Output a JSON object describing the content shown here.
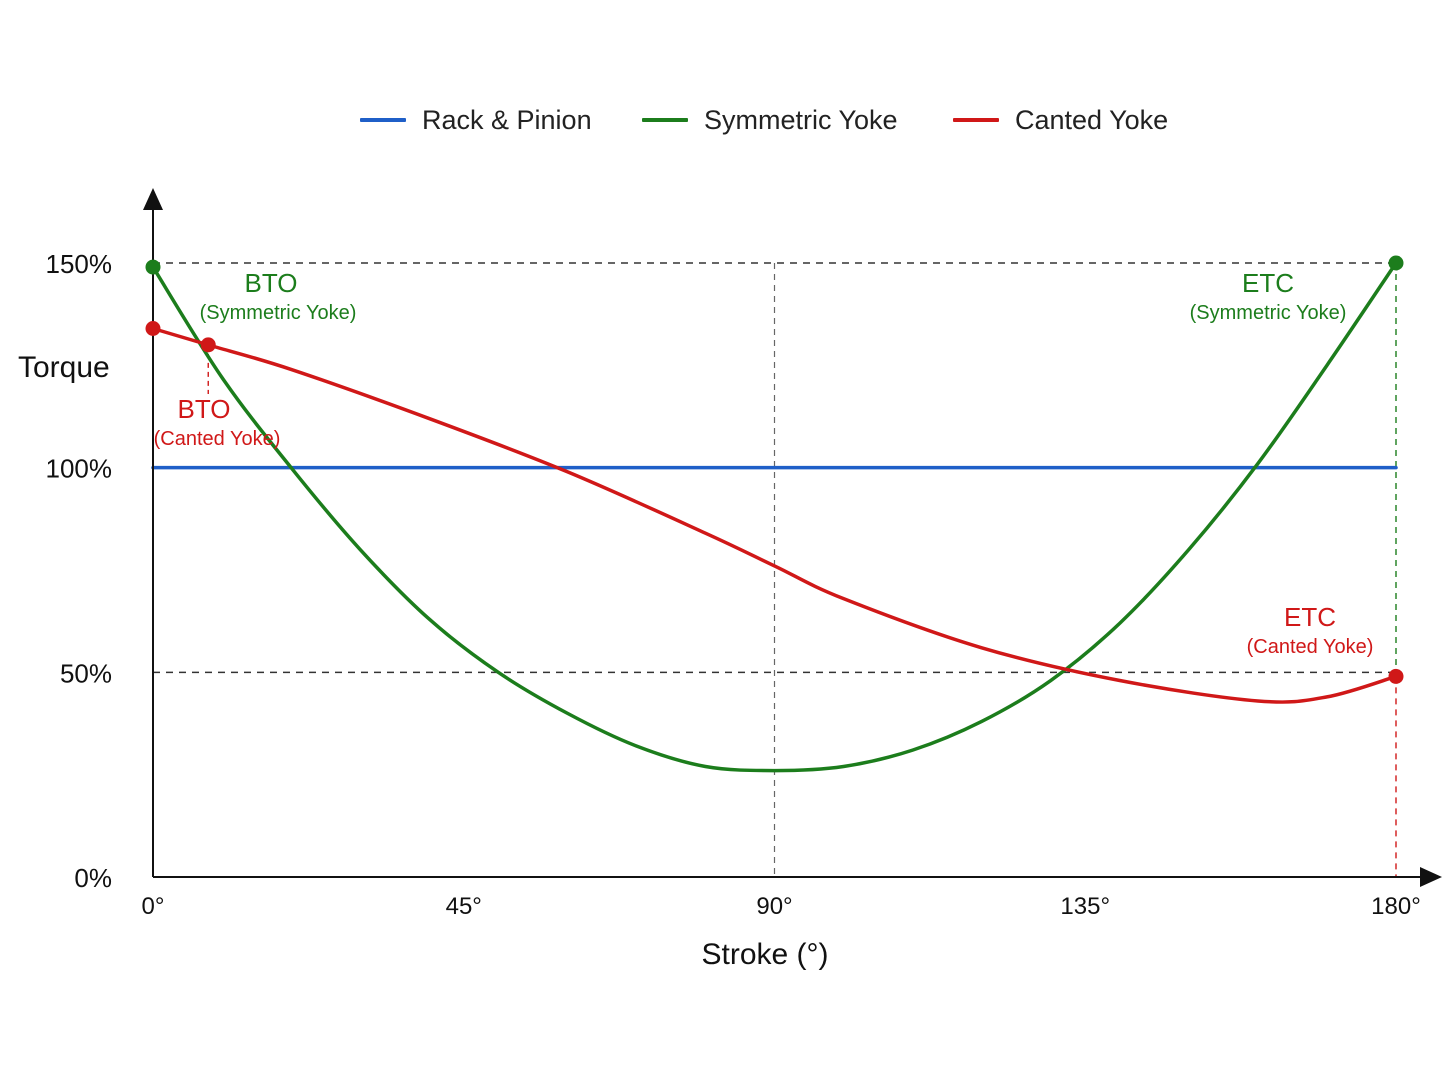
{
  "chart_data": {
    "type": "line",
    "title": "",
    "xlabel": "Stroke (°)",
    "ylabel": "Torque",
    "xlim": [
      0,
      180
    ],
    "ylim": [
      0,
      150
    ],
    "x_ticks": [
      {
        "value": 0,
        "label": "0°"
      },
      {
        "value": 45,
        "label": "45°"
      },
      {
        "value": 90,
        "label": "90°"
      },
      {
        "value": 135,
        "label": "135°"
      },
      {
        "value": 180,
        "label": "180°"
      }
    ],
    "y_ticks": [
      {
        "value": 0,
        "label": "0%"
      },
      {
        "value": 50,
        "label": "50%"
      },
      {
        "value": 100,
        "label": "100%"
      },
      {
        "value": 150,
        "label": "150%"
      }
    ],
    "legend_position": "top",
    "grid": false,
    "series": [
      {
        "name": "Rack & Pinion",
        "color": "#1f5fc8",
        "x": [
          0,
          180
        ],
        "y": [
          100,
          100
        ]
      },
      {
        "name": "Symmetric Yoke",
        "color": "#1c7d1c",
        "x": [
          0,
          10,
          20,
          30,
          40,
          50,
          60,
          70,
          80,
          90,
          100,
          110,
          120,
          130,
          140,
          150,
          160,
          170,
          180
        ],
        "y": [
          149,
          122,
          100,
          80,
          63,
          50,
          40,
          32,
          27,
          26,
          27,
          31,
          38,
          48,
          62,
          80,
          101,
          125,
          150
        ]
      },
      {
        "name": "Canted Yoke",
        "color": "#d01818",
        "x": [
          0,
          8,
          20,
          40,
          60,
          80,
          90,
          100,
          120,
          140,
          160,
          170,
          180
        ],
        "y": [
          134,
          130,
          124,
          112,
          99,
          84,
          76,
          68,
          56,
          48,
          43,
          44,
          49
        ]
      }
    ],
    "annotations": [
      {
        "title": "BTO",
        "subtitle": "(Symmetric Yoke)",
        "color": "#1c7d1c"
      },
      {
        "title": "ETC",
        "subtitle": "(Symmetric Yoke)",
        "color": "#1c7d1c"
      },
      {
        "title": "BTO",
        "subtitle": "(Canted Yoke)",
        "color": "#d01818"
      },
      {
        "title": "ETC",
        "subtitle": "(Canted Yoke)",
        "color": "#d01818"
      }
    ]
  }
}
